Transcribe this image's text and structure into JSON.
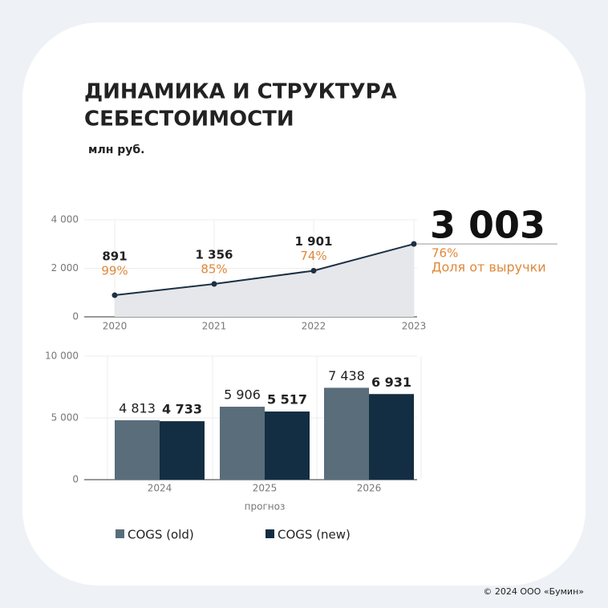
{
  "title": [
    "ДИНАМИКА И СТРУКТУРА",
    "СЕБЕСТОИМОСТИ"
  ],
  "subtitle": "млн руб.",
  "footer": "© 2024 ООО «Бумин»",
  "chart_data": [
    {
      "type": "area",
      "categories": [
        "2020",
        "2021",
        "2022",
        "2023"
      ],
      "values": [
        891,
        1356,
        1901,
        3003
      ],
      "value_labels": [
        "891",
        "1 356",
        "1 901",
        "3 003"
      ],
      "shares": [
        99,
        85,
        74,
        76
      ],
      "share_labels": [
        "99%",
        "85%",
        "74%",
        "76%"
      ],
      "annotation": "Доля от выручки",
      "color": "#1d3044",
      "fill": "#e5e7ea",
      "share_color": "#e0883a",
      "ylim": [
        0,
        4000
      ],
      "yticks": [
        0,
        {
          "value": 2000,
          "label": "2 000"
        },
        {
          "value": 4000,
          "label": "4 000"
        }
      ],
      "grid": true
    },
    {
      "type": "bar",
      "categories": [
        "2024",
        "2025",
        "2026"
      ],
      "x_label": "прогноз",
      "series": [
        {
          "name": "COGS (old)",
          "color": "#5a6d7b",
          "values": [
            4813,
            5906,
            7438
          ],
          "value_labels": [
            "4 813",
            "5 906",
            "7 438"
          ]
        },
        {
          "name": "COGS (new)",
          "color": "#132d43",
          "values": [
            4733,
            5517,
            6931
          ],
          "value_labels": [
            "4 733",
            "5 517",
            "6 931"
          ]
        }
      ],
      "ylim": [
        0,
        10000
      ],
      "yticks": [
        0,
        {
          "value": 5000,
          "label": "5 000"
        },
        {
          "value": 10000,
          "label": "10 000"
        }
      ],
      "grid": true
    }
  ]
}
